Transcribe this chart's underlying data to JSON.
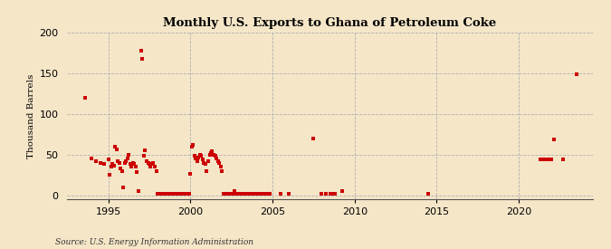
{
  "title": "Monthly U.S. Exports to Ghana of Petroleum Coke",
  "ylabel": "Thousand Barrels",
  "source": "Source: U.S. Energy Information Administration",
  "background_color": "#f5e6c8",
  "marker_color": "#cc0000",
  "xlim": [
    1992.5,
    2024.5
  ],
  "ylim": [
    -5,
    200
  ],
  "yticks": [
    0,
    50,
    100,
    150,
    200
  ],
  "xticks": [
    1995,
    2000,
    2005,
    2010,
    2015,
    2020
  ],
  "data_x": [
    1993.58,
    1994.0,
    1994.25,
    1994.5,
    1994.75,
    1995.0,
    1995.08,
    1995.17,
    1995.25,
    1995.33,
    1995.42,
    1995.5,
    1995.58,
    1995.67,
    1995.75,
    1995.83,
    1995.92,
    1996.0,
    1996.08,
    1996.17,
    1996.25,
    1996.33,
    1996.42,
    1996.5,
    1996.58,
    1996.67,
    1996.75,
    1996.83,
    1997.0,
    1997.08,
    1997.17,
    1997.25,
    1997.33,
    1997.42,
    1997.5,
    1997.58,
    1997.67,
    1997.75,
    1997.83,
    1997.92,
    1998.0,
    1998.08,
    1998.17,
    1998.25,
    1998.33,
    1998.42,
    1998.5,
    1998.58,
    1998.67,
    1998.75,
    1999.0,
    1999.08,
    1999.17,
    1999.25,
    1999.33,
    1999.42,
    1999.5,
    1999.58,
    1999.75,
    1999.92,
    2000.0,
    2000.08,
    2000.17,
    2000.25,
    2000.33,
    2000.42,
    2000.5,
    2000.58,
    2000.67,
    2000.75,
    2000.83,
    2000.92,
    2001.0,
    2001.08,
    2001.17,
    2001.25,
    2001.33,
    2001.42,
    2001.5,
    2001.58,
    2001.67,
    2001.75,
    2001.83,
    2001.92,
    2002.0,
    2002.08,
    2002.17,
    2002.25,
    2002.33,
    2002.5,
    2002.67,
    2002.75,
    2002.83,
    2003.0,
    2003.08,
    2003.17,
    2003.33,
    2003.5,
    2003.58,
    2003.75,
    2003.83,
    2003.92,
    2004.08,
    2004.17,
    2004.25,
    2004.42,
    2004.5,
    2004.58,
    2004.67,
    2004.75,
    2004.83,
    2005.5,
    2006.0,
    2007.5,
    2008.0,
    2008.25,
    2008.5,
    2008.67,
    2008.83,
    2009.25,
    2014.5,
    2021.33,
    2021.5,
    2021.67,
    2021.83,
    2022.0,
    2022.17,
    2022.67,
    2023.5
  ],
  "data_y": [
    120,
    45,
    42,
    40,
    38,
    44,
    25,
    35,
    38,
    36,
    60,
    56,
    42,
    40,
    33,
    30,
    10,
    40,
    42,
    45,
    50,
    38,
    35,
    40,
    38,
    35,
    28,
    5,
    178,
    168,
    48,
    55,
    42,
    40,
    38,
    35,
    38,
    40,
    35,
    30,
    2,
    2,
    2,
    2,
    2,
    2,
    2,
    2,
    2,
    2,
    2,
    2,
    2,
    2,
    2,
    2,
    2,
    2,
    2,
    2,
    26,
    60,
    62,
    48,
    45,
    42,
    46,
    50,
    48,
    44,
    40,
    38,
    30,
    42,
    50,
    52,
    54,
    50,
    48,
    45,
    42,
    40,
    35,
    30,
    2,
    2,
    2,
    2,
    2,
    2,
    5,
    2,
    2,
    2,
    2,
    2,
    2,
    2,
    2,
    2,
    2,
    2,
    2,
    2,
    2,
    2,
    2,
    2,
    2,
    2,
    2,
    2,
    2,
    70,
    2,
    2,
    2,
    2,
    2,
    5,
    2,
    44,
    44,
    44,
    44,
    44,
    68,
    44,
    149
  ]
}
